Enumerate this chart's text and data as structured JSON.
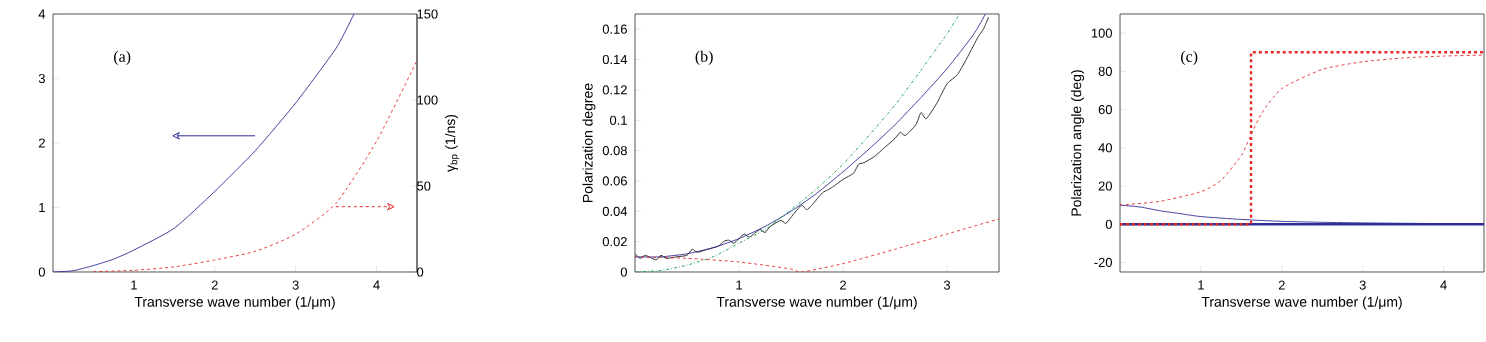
{
  "chart_data": [
    {
      "type": "line",
      "xlabel": "Transverse wave number (1/μm)",
      "y2label": "γ$_{bp}$ (1/ns)",
      "annotations": [
        "(a)"
      ],
      "xlim": [
        0,
        4.5
      ],
      "xticks": [
        1,
        2,
        3,
        4
      ],
      "ylim": [
        0,
        4
      ],
      "yticks": [
        0,
        1,
        2,
        3,
        4
      ],
      "y2lim": [
        0,
        150
      ],
      "y2ticks": [
        0,
        50,
        100,
        150
      ],
      "series": [
        {
          "color": "#2e2e96",
          "x": [
            0,
            0.25,
            0.5,
            0.75,
            1,
            1.5,
            2,
            2.5,
            3,
            3.5,
            3.72
          ],
          "values": [
            0,
            0.02,
            0.1,
            0.2,
            0.34,
            0.68,
            1.25,
            1.88,
            2.62,
            3.47,
            4.0
          ]
        },
        {
          "color": "#e52a2a",
          "line_style": "dashed",
          "axis": "y2",
          "x": [
            0.5,
            1,
            1.5,
            2,
            2.5,
            3,
            3.5,
            4,
            4.5
          ],
          "values": [
            0.2,
            1,
            3,
            7,
            12,
            22,
            40,
            76,
            123
          ]
        }
      ]
    },
    {
      "type": "line",
      "xlabel": "Transverse wave number (1/μm)",
      "ylabel": "Polarization degree",
      "annotations": [
        "(b)"
      ],
      "xlim": [
        0,
        3.5
      ],
      "xticks": [
        1,
        2,
        3
      ],
      "ylim": [
        0,
        0.17
      ],
      "yticks": [
        0,
        0.02,
        0.04,
        0.06,
        0.08,
        0.1,
        0.12,
        0.14,
        0.16
      ],
      "series": [
        {
          "color": "#202020",
          "x": [
            0,
            0.05,
            0.1,
            0.2,
            0.25,
            0.3,
            0.4,
            0.5,
            0.55,
            0.6,
            0.7,
            0.8,
            0.85,
            0.9,
            0.95,
            1.0,
            1.05,
            1.1,
            1.2,
            1.25,
            1.3,
            1.4,
            1.45,
            1.5,
            1.6,
            1.65,
            1.7,
            1.8,
            1.85,
            1.9,
            2.0,
            2.1,
            2.15,
            2.2,
            2.3,
            2.4,
            2.5,
            2.55,
            2.6,
            2.7,
            2.75,
            2.8,
            2.9,
            3.0,
            3.1,
            3.2,
            3.3,
            3.35,
            3.4
          ],
          "values": [
            0.012,
            0.009,
            0.011,
            0.008,
            0.011,
            0.009,
            0.01,
            0.011,
            0.015,
            0.013,
            0.015,
            0.017,
            0.02,
            0.021,
            0.019,
            0.022,
            0.025,
            0.023,
            0.028,
            0.026,
            0.03,
            0.034,
            0.032,
            0.036,
            0.044,
            0.041,
            0.044,
            0.052,
            0.054,
            0.056,
            0.061,
            0.065,
            0.071,
            0.072,
            0.076,
            0.082,
            0.088,
            0.092,
            0.09,
            0.097,
            0.105,
            0.101,
            0.111,
            0.124,
            0.13,
            0.142,
            0.155,
            0.16,
            0.168
          ]
        },
        {
          "color": "#2e2e96",
          "x": [
            0,
            0.25,
            0.5,
            0.75,
            1,
            1.25,
            1.5,
            1.75,
            2,
            2.25,
            2.5,
            2.75,
            3,
            3.25,
            3.37
          ],
          "values": [
            0.01,
            0.01,
            0.012,
            0.016,
            0.022,
            0.03,
            0.04,
            0.052,
            0.066,
            0.081,
            0.097,
            0.115,
            0.134,
            0.156,
            0.17
          ]
        },
        {
          "color": "#12a04a",
          "line_style": "dashdot",
          "x": [
            0,
            0.25,
            0.5,
            0.75,
            1,
            1.25,
            1.5,
            1.75,
            2,
            2.25,
            2.5,
            2.75,
            3,
            3.12
          ],
          "values": [
            0,
            0.001,
            0.0045,
            0.01,
            0.019,
            0.028,
            0.041,
            0.055,
            0.071,
            0.09,
            0.11,
            0.133,
            0.157,
            0.17
          ]
        },
        {
          "color": "#e52a2a",
          "line_style": "dashed",
          "x": [
            0,
            0.5,
            1,
            1.5,
            1.6,
            2,
            2.5,
            3,
            3.5
          ],
          "values": [
            0.01,
            0.009,
            0.0066,
            0.002,
            0,
            0.0055,
            0.015,
            0.025,
            0.035
          ]
        }
      ]
    },
    {
      "type": "line",
      "xlabel": "Transverse wave number (1/μm)",
      "ylabel": "Polarization angle (deg)",
      "annotations": [
        "(c)"
      ],
      "xlim": [
        0,
        4.5
      ],
      "xticks": [
        1,
        2,
        3,
        4
      ],
      "ylim": [
        -25,
        110
      ],
      "yticks": [
        -20,
        0,
        20,
        40,
        60,
        80,
        100
      ],
      "series": [
        {
          "color": "#2e2e96",
          "type": "step",
          "x": [
            0,
            4.5
          ],
          "values": [
            0,
            0
          ]
        },
        {
          "color": "#2e2e96",
          "x": [
            0,
            0.25,
            0.5,
            0.75,
            1,
            1.5,
            2,
            2.5,
            3,
            3.5,
            4,
            4.5
          ],
          "values": [
            10,
            9,
            7,
            5.5,
            4,
            2.5,
            1.5,
            1,
            0.7,
            0.5,
            0.3,
            0.2
          ]
        },
        {
          "color": "#e52a2a",
          "line_style": "dashed",
          "x": [
            0,
            0.5,
            1,
            1.25,
            1.5,
            1.6,
            1.75,
            2,
            2.5,
            3,
            3.5,
            4,
            4.5
          ],
          "values": [
            10,
            12,
            17,
            23,
            36,
            45,
            58,
            71,
            81,
            85,
            87,
            88,
            88.5
          ]
        },
        {
          "color": "#e52a2a",
          "type": "step",
          "line_style": "dashed",
          "x": [
            0,
            1.62,
            4.5
          ],
          "values": [
            0,
            90,
            90
          ]
        }
      ]
    }
  ]
}
